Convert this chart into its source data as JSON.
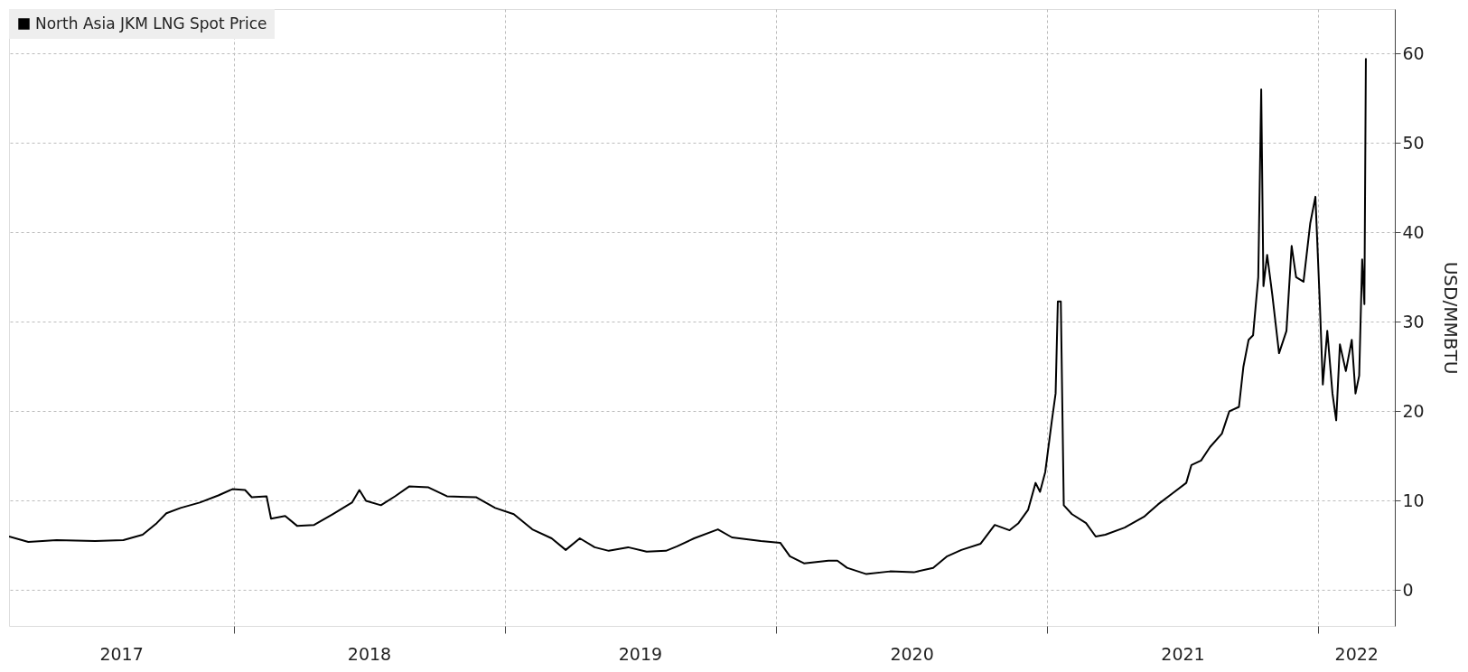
{
  "chart_data": {
    "type": "line",
    "ylabel": "USD/MMBTU",
    "xlim": [
      "2017-03-04",
      "2022-04-14"
    ],
    "ylim": [
      -4,
      65
    ],
    "yticks": [
      0,
      10,
      20,
      30,
      40,
      50,
      60
    ],
    "xticks": [
      {
        "value": "2017-08-02",
        "label": "2017"
      },
      {
        "value": "2018-01-01",
        "label": null
      },
      {
        "value": "2018-07-02",
        "label": "2018"
      },
      {
        "value": "2019-01-01",
        "label": null
      },
      {
        "value": "2019-07-02",
        "label": "2019"
      },
      {
        "value": "2020-01-01",
        "label": null
      },
      {
        "value": "2020-07-02",
        "label": "2020"
      },
      {
        "value": "2021-01-01",
        "label": null
      },
      {
        "value": "2021-07-02",
        "label": "2021"
      },
      {
        "value": "2022-01-01",
        "label": null
      },
      {
        "value": "2022-02-21",
        "label": "2022"
      }
    ],
    "grid": true,
    "legend": "top left",
    "line_style": "solid",
    "marker": "none",
    "x": [
      "2017-03-04",
      "2017-03-30",
      "2017-05-07",
      "2017-06-28",
      "2017-08-05",
      "2017-08-31",
      "2017-09-19",
      "2017-10-02",
      "2017-10-21",
      "2017-11-16",
      "2017-12-11",
      "2017-12-30",
      "2018-01-16",
      "2018-01-25",
      "2018-02-14",
      "2018-02-20",
      "2018-03-11",
      "2018-03-27",
      "2018-04-19",
      "2018-05-14",
      "2018-06-09",
      "2018-06-19",
      "2018-06-28",
      "2018-07-18",
      "2018-08-06",
      "2018-08-25",
      "2018-09-20",
      "2018-10-15",
      "2018-11-23",
      "2018-12-19",
      "2019-01-13",
      "2019-02-07",
      "2019-03-05",
      "2019-03-24",
      "2019-04-12",
      "2019-05-02",
      "2019-05-21",
      "2019-06-16",
      "2019-07-11",
      "2019-08-06",
      "2019-08-21",
      "2019-09-13",
      "2019-10-15",
      "2019-11-03",
      "2019-12-12",
      "2020-01-07",
      "2020-01-20",
      "2020-02-08",
      "2020-03-12",
      "2020-03-24",
      "2020-04-06",
      "2020-05-02",
      "2020-06-03",
      "2020-07-05",
      "2020-07-31",
      "2020-08-19",
      "2020-09-07",
      "2020-10-03",
      "2020-10-22",
      "2020-11-11",
      "2020-11-23",
      "2020-12-06",
      "2020-12-16",
      "2020-12-22",
      "2020-12-29",
      "2021-01-07",
      "2021-01-12",
      "2021-01-15",
      "2021-01-19",
      "2021-01-23",
      "2021-02-03",
      "2021-02-22",
      "2021-03-07",
      "2021-03-20",
      "2021-04-15",
      "2021-05-11",
      "2021-05-30",
      "2021-06-18",
      "2021-07-07",
      "2021-07-14",
      "2021-07-27",
      "2021-08-08",
      "2021-08-24",
      "2021-09-03",
      "2021-09-16",
      "2021-09-22",
      "2021-09-29",
      "2021-10-05",
      "2021-10-12",
      "2021-10-16",
      "2021-10-19",
      "2021-10-24",
      "2021-10-31",
      "2021-11-09",
      "2021-11-19",
      "2021-11-26",
      "2021-12-02",
      "2021-12-12",
      "2021-12-21",
      "2021-12-28",
      "2022-01-03",
      "2022-01-07",
      "2022-01-13",
      "2022-01-20",
      "2022-01-25",
      "2022-01-30",
      "2022-02-07",
      "2022-02-15",
      "2022-02-20",
      "2022-02-25",
      "2022-03-01",
      "2022-03-04",
      "2022-03-06"
    ],
    "series": [
      {
        "name": "North Asia JKM LNG Spot Price",
        "color": "#000000",
        "values": [
          6.0,
          5.4,
          5.6,
          5.5,
          5.6,
          6.2,
          7.5,
          8.6,
          9.2,
          9.8,
          10.6,
          11.3,
          11.2,
          10.4,
          10.5,
          8.0,
          8.3,
          7.2,
          7.3,
          8.5,
          9.8,
          11.2,
          10.0,
          9.5,
          10.5,
          11.6,
          11.5,
          10.5,
          10.4,
          9.2,
          8.5,
          6.8,
          5.8,
          4.5,
          5.8,
          4.8,
          4.4,
          4.8,
          4.3,
          4.4,
          4.9,
          5.8,
          6.8,
          5.9,
          5.5,
          5.3,
          3.8,
          3.0,
          3.3,
          3.3,
          2.5,
          1.8,
          2.1,
          2.0,
          2.5,
          3.8,
          4.5,
          5.2,
          7.3,
          6.7,
          7.5,
          9.0,
          12.0,
          11.0,
          13.2,
          19.0,
          22.0,
          32.3,
          32.3,
          9.5,
          8.5,
          7.5,
          6.0,
          6.2,
          7.0,
          8.2,
          9.6,
          10.8,
          12.0,
          14.0,
          14.5,
          16.0,
          17.5,
          20.0,
          20.5,
          25.0,
          28.0,
          28.5,
          35.0,
          56.0,
          34.0,
          37.5,
          33.0,
          26.5,
          29.0,
          38.5,
          35.0,
          34.5,
          41.0,
          44.0,
          32.0,
          23.0,
          29.0,
          22.0,
          19.0,
          27.5,
          24.5,
          28.0,
          22.0,
          24.0,
          37.0,
          32.0,
          59.5
        ]
      }
    ]
  }
}
